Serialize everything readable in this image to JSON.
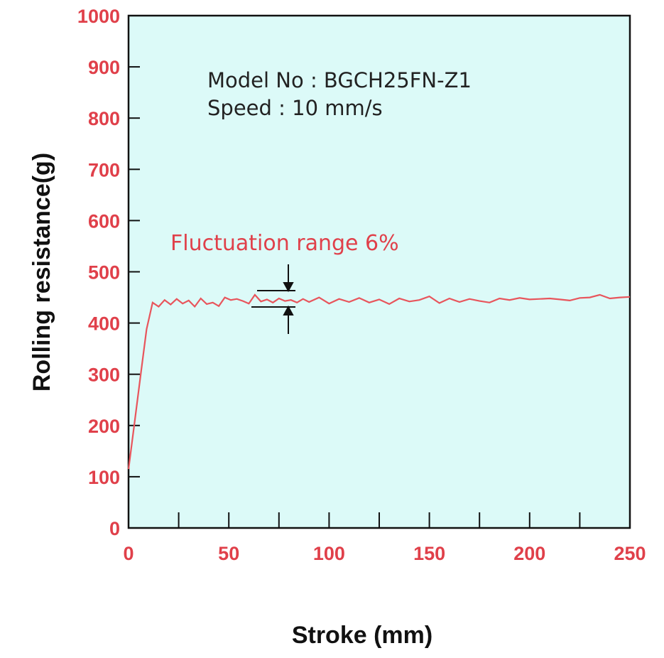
{
  "chart_data": {
    "type": "line",
    "xlabel": "Stroke (mm)",
    "ylabel": "Rolling resistance(g)",
    "annotations": [
      "Model  No : BGCH25FN-Z1",
      "Speed : 10 mm/s",
      "Fluctuation  range 6%"
    ],
    "x": [
      0,
      3,
      6,
      9,
      12,
      15,
      18,
      21,
      24,
      27,
      30,
      33,
      36,
      39,
      42,
      45,
      48,
      51,
      54,
      57,
      60,
      63,
      66,
      69,
      72,
      75,
      78,
      81,
      84,
      87,
      90,
      95,
      100,
      105,
      110,
      115,
      120,
      125,
      130,
      135,
      140,
      145,
      150,
      155,
      160,
      165,
      170,
      175,
      180,
      185,
      190,
      195,
      200,
      205,
      210,
      215,
      220,
      225,
      230,
      235,
      240,
      245,
      250
    ],
    "values": [
      115,
      206,
      297,
      388,
      440,
      432,
      445,
      436,
      447,
      438,
      444,
      432,
      448,
      437,
      440,
      433,
      450,
      445,
      447,
      443,
      438,
      455,
      442,
      446,
      440,
      448,
      443,
      445,
      440,
      447,
      441,
      450,
      438,
      447,
      441,
      449,
      440,
      446,
      437,
      448,
      442,
      445,
      452,
      439,
      448,
      441,
      447,
      443,
      440,
      448,
      445,
      449,
      446,
      447,
      448,
      446,
      444,
      449,
      450,
      455,
      448,
      450,
      451
    ],
    "color": "#e8555c",
    "xlim": [
      0,
      250
    ],
    "xticks": [
      0,
      50,
      100,
      150,
      200,
      250
    ],
    "xminorticks": [
      25,
      75,
      125,
      175,
      225
    ],
    "ylim": [
      0,
      1000
    ],
    "yticks": [
      0,
      100,
      200,
      300,
      400,
      500,
      600,
      700,
      800,
      900,
      1000
    ],
    "background": "#dcfaf8"
  }
}
